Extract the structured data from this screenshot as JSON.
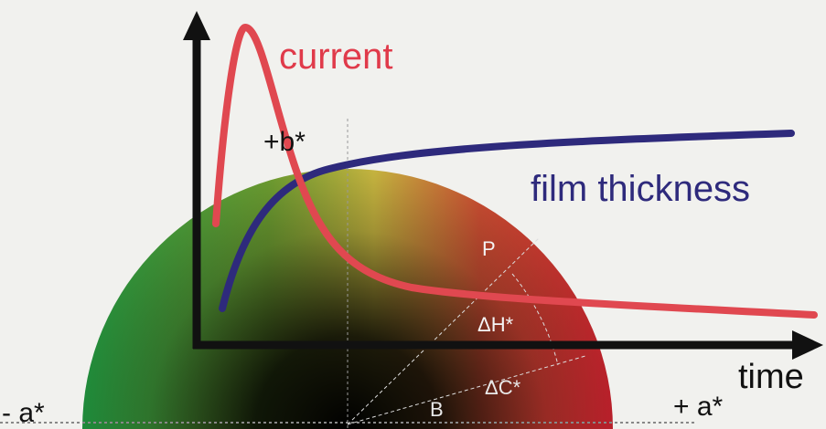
{
  "curves": {
    "current": "current",
    "film_thickness": "film thickness"
  },
  "axis": {
    "x_label": "time"
  },
  "color_space": {
    "plus_b": "+b*",
    "minus_a": "- a*",
    "plus_a": "+ a*",
    "point_p": "P",
    "delta_h": "ΔH*",
    "delta_c": "ΔC*",
    "point_b": "B"
  }
}
